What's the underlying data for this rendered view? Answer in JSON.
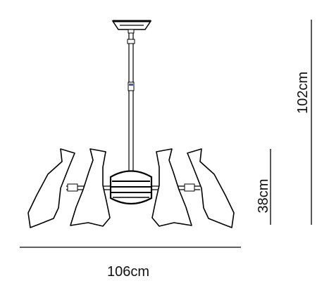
{
  "dimensions": {
    "overall_height": "102cm",
    "shade_height": "38cm",
    "overall_width": "106cm"
  },
  "colors": {
    "line": "#000000",
    "connector_accent": "#3a5bd9"
  }
}
